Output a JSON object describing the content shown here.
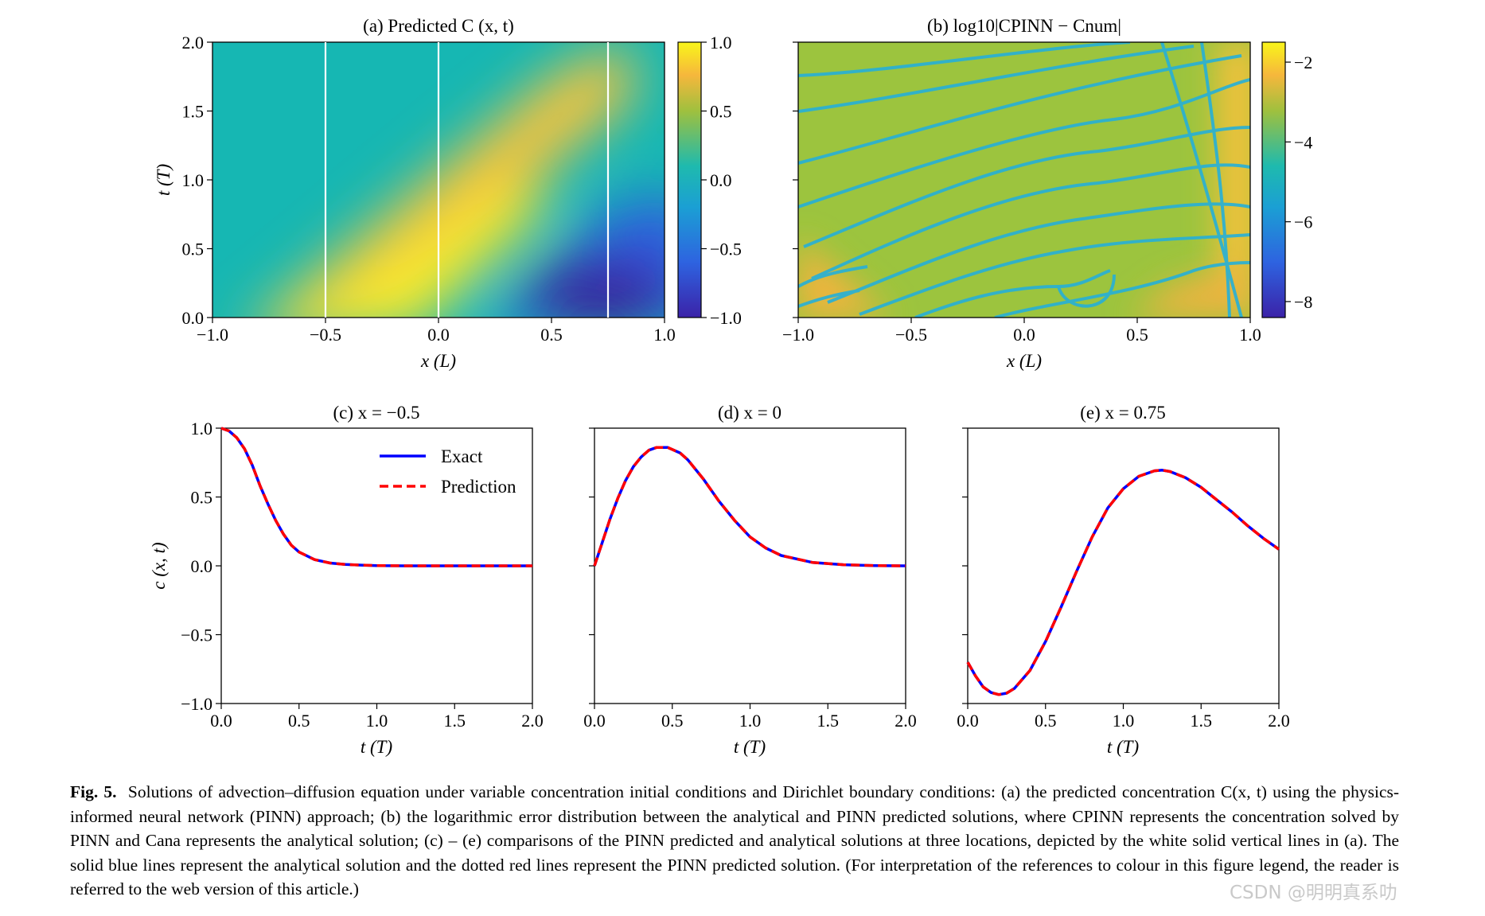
{
  "chart_data": [
    {
      "id": "a",
      "type": "heatmap",
      "title": "(a) Predicted C (x, t)",
      "xlabel": "x (L)",
      "ylabel": "t (T)",
      "xlim": [
        -1.0,
        1.0
      ],
      "ylim": [
        0.0,
        2.0
      ],
      "xticks": [
        "−1.0",
        "−0.5",
        "0.0",
        "0.5",
        "1.0"
      ],
      "yticks": [
        "0.0",
        "0.5",
        "1.0",
        "1.5",
        "2.0"
      ],
      "colorbar": {
        "range": [
          -1.0,
          1.0
        ],
        "ticks": [
          "1.0",
          "0.5",
          "0.0",
          "−0.5",
          "−1.0"
        ],
        "colormap": "viridis"
      },
      "vertical_lines_x": [
        -0.5,
        0.0,
        0.75
      ],
      "vertical_line_color": "#ffffff"
    },
    {
      "id": "b",
      "type": "heatmap",
      "title": "(b) log10|CPINN − Cnum|",
      "xlabel": "x (L)",
      "xlim": [
        -1.0,
        1.0
      ],
      "ylim": [
        0.0,
        2.0
      ],
      "xticks": [
        "−1.0",
        "−0.5",
        "0.0",
        "0.5",
        "1.0"
      ],
      "colorbar": {
        "range": [
          -8.4,
          -1.5
        ],
        "ticks": [
          "−2",
          "−4",
          "−6",
          "−8"
        ],
        "colormap": "viridis"
      }
    },
    {
      "id": "c",
      "type": "line",
      "title": "(c) x = −0.5",
      "xlabel": "t (T)",
      "ylabel": "c (x, t)",
      "xlim": [
        0.0,
        2.0
      ],
      "ylim": [
        -1.0,
        1.0
      ],
      "xticks": [
        "0.0",
        "0.5",
        "1.0",
        "1.5",
        "2.0"
      ],
      "yticks": [
        "1.0",
        "0.5",
        "0.0",
        "−0.5",
        "−1.0"
      ],
      "legend": {
        "placement": "upper-center",
        "entries": [
          "Exact",
          "Prediction"
        ]
      },
      "series": [
        {
          "name": "Exact",
          "color": "#0000ff",
          "style": "solid",
          "x": [
            0,
            0.05,
            0.1,
            0.15,
            0.2,
            0.25,
            0.3,
            0.35,
            0.4,
            0.45,
            0.5,
            0.6,
            0.7,
            0.8,
            0.9,
            1.0,
            1.2,
            1.4,
            1.6,
            1.8,
            2.0
          ],
          "y": [
            1.0,
            0.98,
            0.93,
            0.85,
            0.73,
            0.58,
            0.45,
            0.33,
            0.23,
            0.15,
            0.1,
            0.045,
            0.02,
            0.01,
            0.005,
            0.002,
            0.0,
            0.0,
            0.0,
            0.0,
            0.0
          ]
        },
        {
          "name": "Prediction",
          "color": "#ff0000",
          "style": "dashed",
          "x": [
            0,
            0.05,
            0.1,
            0.15,
            0.2,
            0.25,
            0.3,
            0.35,
            0.4,
            0.45,
            0.5,
            0.6,
            0.7,
            0.8,
            0.9,
            1.0,
            1.2,
            1.4,
            1.6,
            1.8,
            2.0
          ],
          "y": [
            1.0,
            0.98,
            0.93,
            0.85,
            0.73,
            0.58,
            0.45,
            0.33,
            0.23,
            0.15,
            0.1,
            0.045,
            0.02,
            0.01,
            0.005,
            0.002,
            0.0,
            0.0,
            0.0,
            0.0,
            0.0
          ]
        }
      ]
    },
    {
      "id": "d",
      "type": "line",
      "title": "(d) x = 0",
      "xlabel": "t (T)",
      "xlim": [
        0.0,
        2.0
      ],
      "ylim": [
        -1.0,
        1.0
      ],
      "xticks": [
        "0.0",
        "0.5",
        "1.0",
        "1.5",
        "2.0"
      ],
      "series": [
        {
          "name": "Exact",
          "color": "#0000ff",
          "style": "solid",
          "x": [
            0,
            0.05,
            0.1,
            0.15,
            0.2,
            0.25,
            0.3,
            0.35,
            0.4,
            0.47,
            0.55,
            0.6,
            0.7,
            0.8,
            0.9,
            1.0,
            1.1,
            1.2,
            1.4,
            1.6,
            1.8,
            2.0
          ],
          "y": [
            0.0,
            0.17,
            0.34,
            0.49,
            0.62,
            0.72,
            0.79,
            0.84,
            0.86,
            0.86,
            0.82,
            0.77,
            0.63,
            0.47,
            0.33,
            0.21,
            0.13,
            0.075,
            0.025,
            0.008,
            0.002,
            0.0
          ]
        },
        {
          "name": "Prediction",
          "color": "#ff0000",
          "style": "dashed",
          "x": [
            0,
            0.05,
            0.1,
            0.15,
            0.2,
            0.25,
            0.3,
            0.35,
            0.4,
            0.47,
            0.55,
            0.6,
            0.7,
            0.8,
            0.9,
            1.0,
            1.1,
            1.2,
            1.4,
            1.6,
            1.8,
            2.0
          ],
          "y": [
            0.0,
            0.17,
            0.34,
            0.49,
            0.62,
            0.72,
            0.79,
            0.84,
            0.86,
            0.86,
            0.82,
            0.77,
            0.63,
            0.47,
            0.33,
            0.21,
            0.13,
            0.075,
            0.025,
            0.008,
            0.002,
            0.0
          ]
        }
      ]
    },
    {
      "id": "e",
      "type": "line",
      "title": "(e) x = 0.75",
      "xlabel": "t (T)",
      "xlim": [
        0.0,
        2.0
      ],
      "ylim": [
        -1.0,
        1.0
      ],
      "xticks": [
        "0.0",
        "0.5",
        "1.0",
        "1.5",
        "2.0"
      ],
      "series": [
        {
          "name": "Exact",
          "color": "#0000ff",
          "style": "solid",
          "x": [
            0,
            0.05,
            0.1,
            0.15,
            0.2,
            0.25,
            0.3,
            0.4,
            0.5,
            0.6,
            0.7,
            0.8,
            0.9,
            1.0,
            1.1,
            1.2,
            1.25,
            1.3,
            1.4,
            1.5,
            1.6,
            1.7,
            1.8,
            1.9,
            2.0
          ],
          "y": [
            -0.7,
            -0.8,
            -0.88,
            -0.92,
            -0.935,
            -0.925,
            -0.89,
            -0.76,
            -0.55,
            -0.3,
            -0.04,
            0.21,
            0.42,
            0.56,
            0.65,
            0.69,
            0.695,
            0.685,
            0.64,
            0.57,
            0.48,
            0.39,
            0.29,
            0.2,
            0.12
          ]
        },
        {
          "name": "Prediction",
          "color": "#ff0000",
          "style": "dashed",
          "x": [
            0,
            0.05,
            0.1,
            0.15,
            0.2,
            0.25,
            0.3,
            0.4,
            0.5,
            0.6,
            0.7,
            0.8,
            0.9,
            1.0,
            1.1,
            1.2,
            1.25,
            1.3,
            1.4,
            1.5,
            1.6,
            1.7,
            1.8,
            1.9,
            2.0
          ],
          "y": [
            -0.7,
            -0.8,
            -0.88,
            -0.92,
            -0.935,
            -0.925,
            -0.89,
            -0.76,
            -0.55,
            -0.3,
            -0.04,
            0.21,
            0.42,
            0.56,
            0.65,
            0.69,
            0.695,
            0.685,
            0.64,
            0.57,
            0.48,
            0.39,
            0.29,
            0.2,
            0.12
          ]
        }
      ]
    }
  ],
  "caption": {
    "label": "Fig. 5.",
    "text": "Solutions of advection–diffusion equation under variable concentration initial conditions and Dirichlet boundary conditions: (a) the predicted concentration C(x, t) using the physics-informed neural network (PINN) approach; (b) the logarithmic error distribution between the analytical and PINN predicted solutions, where CPINN represents the concentration solved by PINN and Cana represents the analytical solution; (c) – (e) comparisons of the PINN predicted and analytical solutions at three locations, depicted by the white solid vertical lines in (a). The solid blue lines represent the analytical solution and the dotted red lines represent the PINN predicted solution. (For interpretation of the references to colour in this figure legend, the reader is referred to the web version of this article.)"
  },
  "watermark": "CSDN @明明真系叻"
}
